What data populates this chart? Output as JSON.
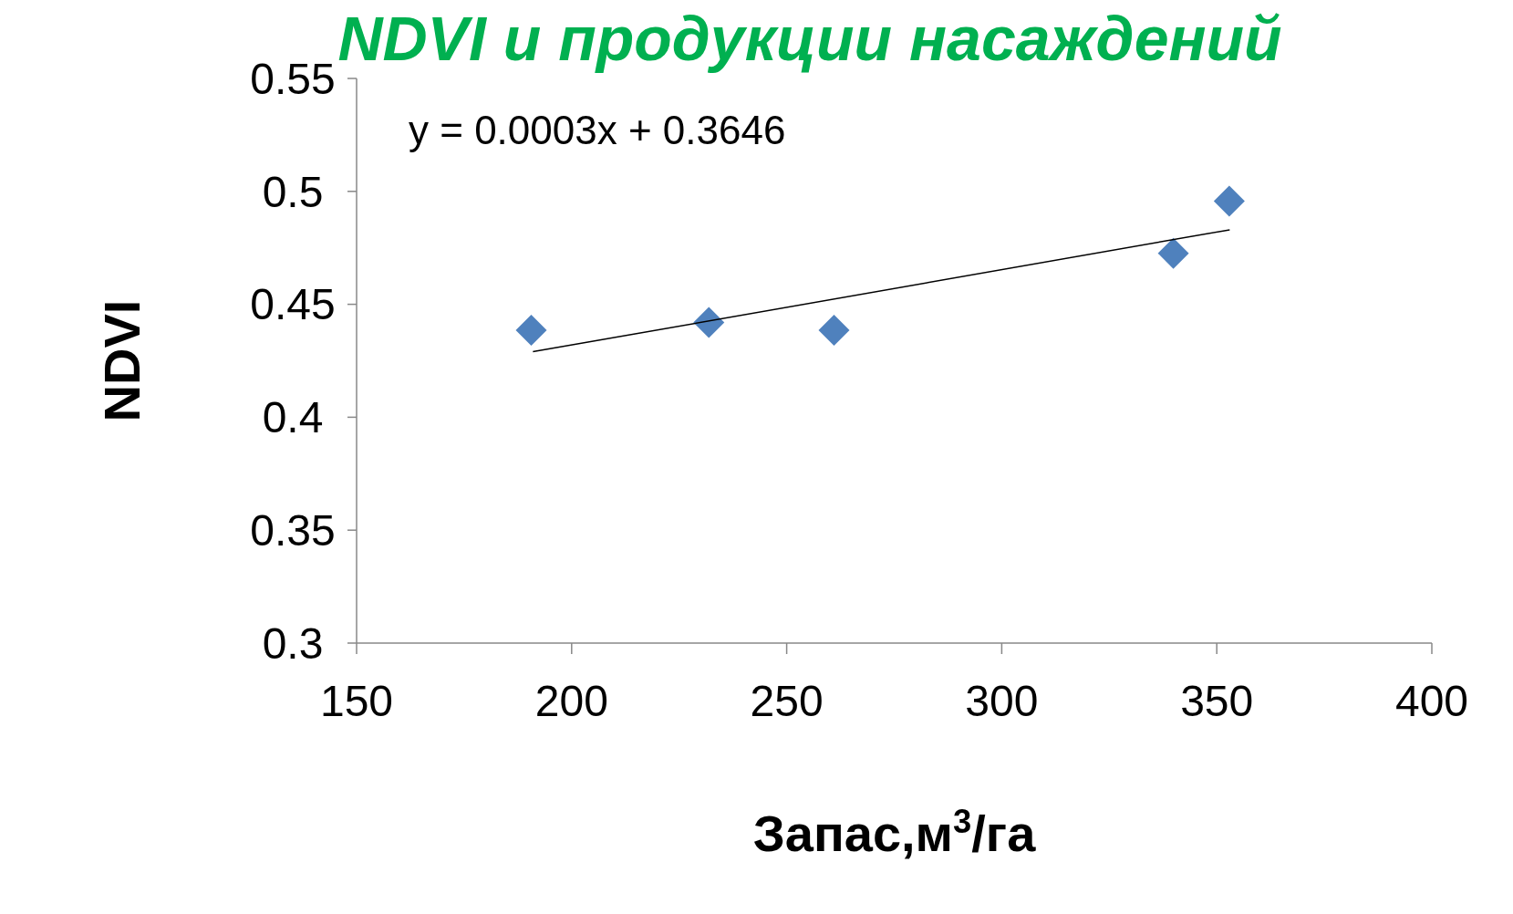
{
  "chart_data": {
    "type": "scatter",
    "title": "NDVI и продукции насаждений",
    "xlabel": "Запас,м$^{3}$/га",
    "ylabel": "NDVI",
    "xlim": [
      150,
      400
    ],
    "xticks": [
      150,
      200,
      250,
      300,
      350,
      400
    ],
    "ylim": [
      0.3,
      0.55
    ],
    "yticks": [
      {
        "value": 0.3,
        "label": "0.3"
      },
      0.35,
      0.4,
      0.45,
      {
        "value": 0.5,
        "label": "0.5"
      },
      0.55
    ],
    "grid": false,
    "series": [
      {
        "marker": "diamond",
        "color": "#4f81bd",
        "x": [
          190.6,
          231.9,
          261,
          339.9,
          352.9
        ],
        "values": [
          0.4385,
          0.442,
          0.4385,
          0.4726,
          0.4957
        ]
      },
      {
        "type": "line",
        "color": "#000000",
        "x": [
          191,
          353
        ],
        "values": [
          0.429,
          0.483
        ]
      }
    ],
    "annotations": [
      "y = 0.0003x + 0.3646"
    ]
  }
}
